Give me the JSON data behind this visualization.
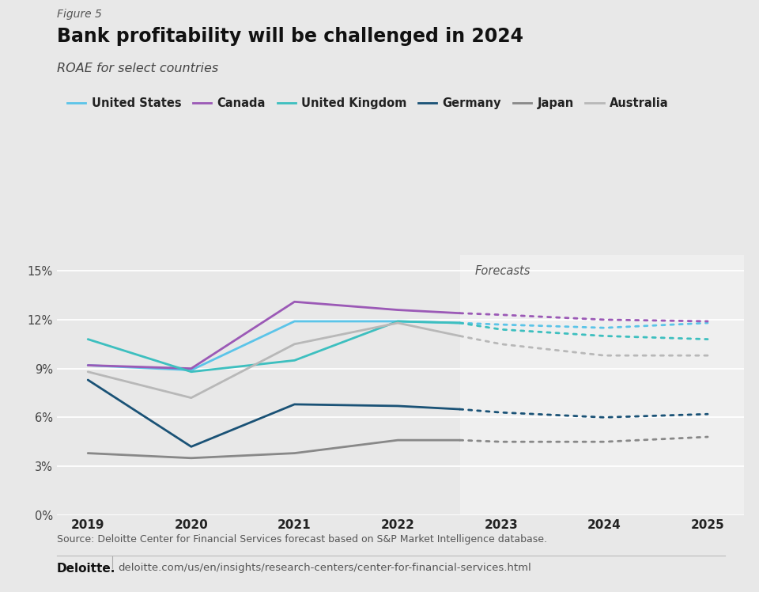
{
  "figure_label": "Figure 5",
  "title": "Bank profitability will be challenged in 2024",
  "subtitle": "ROAE for select countries",
  "source": "Source: Deloitte Center for Financial Services forecast based on S&P Market Intelligence database.",
  "footer_url": "deloitte.com/us/en/insights/research-centers/center-for-financial-services.html",
  "background_color": "#e8e8e8",
  "plot_bg_color": "#e8e8e8",
  "forecast_bg_color": "#efefef",
  "years_actual": [
    2019,
    2020,
    2021,
    2022,
    2022.6
  ],
  "years_forecast": [
    2022.6,
    2023,
    2024,
    2025
  ],
  "series": {
    "United States": {
      "actual": [
        9.2,
        8.9,
        11.9,
        11.9,
        11.8
      ],
      "forecast": [
        11.8,
        11.7,
        11.5,
        11.8
      ],
      "color": "#5bc4e8",
      "lw": 2.0
    },
    "Canada": {
      "actual": [
        9.2,
        9.0,
        13.1,
        12.6,
        12.4
      ],
      "forecast": [
        12.4,
        12.3,
        12.0,
        11.9
      ],
      "color": "#9b59b6",
      "lw": 2.0
    },
    "United Kingdom": {
      "actual": [
        10.8,
        8.8,
        9.5,
        11.9,
        11.8
      ],
      "forecast": [
        11.8,
        11.4,
        11.0,
        10.8
      ],
      "color": "#3dbfbf",
      "lw": 2.0
    },
    "Germany": {
      "actual": [
        8.3,
        4.2,
        6.8,
        6.7,
        6.5
      ],
      "forecast": [
        6.5,
        6.3,
        6.0,
        6.2
      ],
      "color": "#1a5276",
      "lw": 2.0
    },
    "Japan": {
      "actual": [
        3.8,
        3.5,
        3.8,
        4.6,
        4.6
      ],
      "forecast": [
        4.6,
        4.5,
        4.5,
        4.8
      ],
      "color": "#888888",
      "lw": 2.0
    },
    "Australia": {
      "actual": [
        8.8,
        7.2,
        10.5,
        11.8,
        11.0
      ],
      "forecast": [
        11.0,
        10.5,
        9.8,
        9.8
      ],
      "color": "#b8b8b8",
      "lw": 2.0
    }
  },
  "legend_order": [
    "United States",
    "Canada",
    "United Kingdom",
    "Germany",
    "Japan",
    "Australia"
  ],
  "ylim": [
    0,
    16
  ],
  "yticks": [
    0,
    3,
    6,
    9,
    12,
    15
  ],
  "ytick_labels": [
    "0%",
    "3%",
    "6%",
    "9%",
    "12%",
    "15%"
  ],
  "forecast_start_x": 2022.6,
  "xlim_left": 2018.7,
  "xlim_right": 2025.35
}
